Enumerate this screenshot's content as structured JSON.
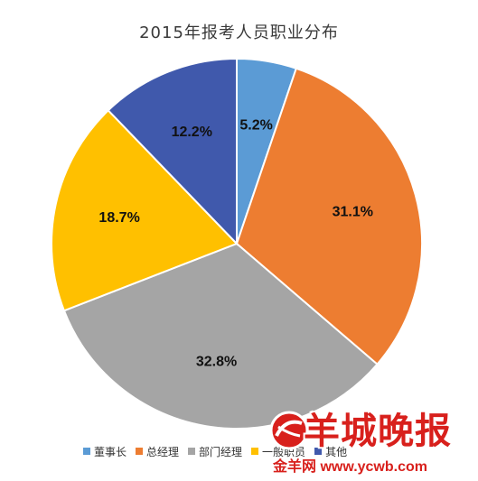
{
  "chart_data": {
    "type": "pie",
    "title": "2015年报考人员职业分布",
    "categories": [
      "董事长",
      "总经理",
      "部门经理",
      "一般职员",
      "其他"
    ],
    "values": [
      5.2,
      31.1,
      32.8,
      18.7,
      12.2
    ],
    "labels": [
      "5.2%",
      "31.1%",
      "32.8%",
      "18.7%",
      "12.2%"
    ],
    "colors": [
      "#5b9bd5",
      "#ed7d31",
      "#a5a5a5",
      "#ffc000",
      "#4059ac"
    ],
    "start_angle_deg": 0,
    "direction": "clockwise",
    "legend_position": "bottom"
  },
  "watermark": {
    "title": "羊城晚报",
    "subtitle": "金羊网 www.ycwb.com",
    "color": "#d8201c"
  }
}
